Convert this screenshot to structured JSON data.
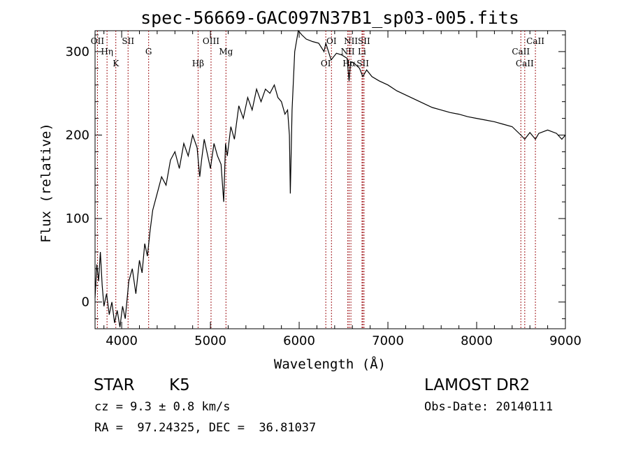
{
  "chart_data": {
    "type": "line",
    "title": "spec-56669-GAC097N37B1_sp03-005.fits",
    "xlabel": "Wavelength (Å)",
    "ylabel": "Flux (relative)",
    "xlim": [
      3700,
      9000
    ],
    "ylim": [
      -32,
      325
    ],
    "xticks": [
      4000,
      5000,
      6000,
      7000,
      8000,
      9000
    ],
    "yticks": [
      0,
      100,
      200,
      300
    ],
    "grid": false,
    "series": [
      {
        "x": [
          3700,
          3720,
          3740,
          3760,
          3780,
          3800,
          3830,
          3860,
          3890,
          3920,
          3950,
          3980,
          4010,
          4040,
          4080,
          4120,
          4160,
          4200,
          4230,
          4260,
          4290,
          4320,
          4350,
          4400,
          4450,
          4500,
          4550,
          4600,
          4650,
          4700,
          4750,
          4800,
          4850,
          4880,
          4900,
          4930,
          4960,
          5000,
          5040,
          5080,
          5120,
          5150,
          5170,
          5190,
          5230,
          5270,
          5320,
          5370,
          5420,
          5470,
          5520,
          5570,
          5620,
          5670,
          5720,
          5760,
          5800,
          5840,
          5870,
          5890,
          5900,
          5920,
          5950,
          5990,
          6030,
          6080,
          6150,
          6220,
          6280,
          6300,
          6360,
          6420,
          6480,
          6540,
          6563,
          6580,
          6620,
          6680,
          6717,
          6760,
          6820,
          6900,
          7000,
          7100,
          7200,
          7300,
          7400,
          7500,
          7600,
          7700,
          7800,
          7900,
          8000,
          8100,
          8200,
          8300,
          8400,
          8498,
          8542,
          8600,
          8662,
          8700,
          8800,
          8900,
          8960,
          9000
        ],
        "y": [
          5,
          45,
          25,
          60,
          20,
          -5,
          10,
          -15,
          0,
          -25,
          -10,
          -30,
          -5,
          -20,
          25,
          40,
          10,
          50,
          35,
          70,
          55,
          85,
          110,
          130,
          150,
          140,
          170,
          180,
          160,
          190,
          175,
          200,
          185,
          150,
          170,
          195,
          180,
          160,
          190,
          175,
          165,
          120,
          190,
          175,
          210,
          195,
          235,
          220,
          245,
          230,
          255,
          240,
          255,
          250,
          260,
          245,
          240,
          225,
          230,
          200,
          130,
          230,
          300,
          330,
          320,
          315,
          312,
          310,
          300,
          310,
          290,
          298,
          296,
          292,
          265,
          288,
          286,
          280,
          270,
          278,
          270,
          265,
          260,
          253,
          248,
          243,
          238,
          233,
          230,
          227,
          225,
          222,
          220,
          218,
          216,
          213,
          210,
          200,
          195,
          203,
          195,
          202,
          206,
          202,
          195,
          200
        ]
      }
    ],
    "lines": [
      {
        "name": "OII",
        "wavelength": 3727
      },
      {
        "name": "Hη",
        "wavelength": 3835
      },
      {
        "name": "K",
        "wavelength": 3934
      },
      {
        "name": "SII",
        "wavelength": 4072
      },
      {
        "name": "G",
        "wavelength": 4304
      },
      {
        "name": "Hβ",
        "wavelength": 4861
      },
      {
        "name": "OIII",
        "wavelength": 5007
      },
      {
        "name": "Mg",
        "wavelength": 5175
      },
      {
        "name": "OI",
        "wavelength": 6300
      },
      {
        "name": "OI",
        "wavelength": 6364
      },
      {
        "name": "NII",
        "wavelength": 6548
      },
      {
        "name": "Hα",
        "wavelength": 6563
      },
      {
        "name": "NII",
        "wavelength": 6583
      },
      {
        "name": "Li",
        "wavelength": 6708
      },
      {
        "name": "SII",
        "wavelength": 6717
      },
      {
        "name": "SII",
        "wavelength": 6731
      },
      {
        "name": "CaII",
        "wavelength": 8498
      },
      {
        "name": "CaII",
        "wavelength": 8542
      },
      {
        "name": "CaII",
        "wavelength": 8662
      }
    ],
    "line_color": "#a0171b",
    "series_color": "#000000"
  },
  "info": {
    "class": "STAR",
    "subclass": "K5",
    "survey": "LAMOST DR2",
    "cz": "cz = 9.3 ± 0.8 km/s",
    "obs_date": "Obs-Date: 20140111",
    "coords": "RA =  97.24325, DEC =  36.81037"
  }
}
